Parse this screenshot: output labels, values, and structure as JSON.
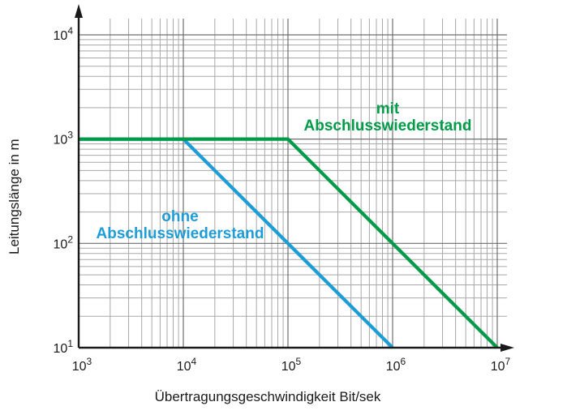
{
  "chart_data": {
    "type": "line",
    "title": "",
    "xlabel": "Übertragungsgeschwindigkeit Bit/sek",
    "ylabel": "Leitungslänge in m",
    "x_scale": "log",
    "y_scale": "log",
    "xlim": [
      1000,
      10000000
    ],
    "ylim": [
      10,
      10000
    ],
    "grid": "log major and minor gridlines on",
    "legend_position": "inline curve annotations",
    "x_ticks": [
      {
        "base": "10",
        "exp": "3"
      },
      {
        "base": "10",
        "exp": "4"
      },
      {
        "base": "10",
        "exp": "5"
      },
      {
        "base": "10",
        "exp": "6"
      },
      {
        "base": "10",
        "exp": "7"
      }
    ],
    "y_ticks": [
      {
        "base": "10",
        "exp": "4"
      },
      {
        "base": "10",
        "exp": "3"
      },
      {
        "base": "10",
        "exp": "2"
      },
      {
        "base": "10",
        "exp": "1"
      }
    ],
    "series": [
      {
        "name": "ohne Abschlusswiederstand",
        "label_lines": [
          "ohne",
          "Abschlusswiederstand"
        ],
        "color": "#1e9cd8",
        "points": [
          [
            1000,
            1000
          ],
          [
            10000,
            1000
          ],
          [
            1000000,
            10
          ]
        ]
      },
      {
        "name": "mit Abschlusswiederstand",
        "label_lines": [
          "mit",
          "Abschlusswiederstand"
        ],
        "color": "#009b48",
        "points": [
          [
            1000,
            1000
          ],
          [
            100000,
            1000
          ],
          [
            10000000,
            10
          ]
        ]
      }
    ],
    "colors": {
      "axis": "#1a1a1a",
      "grid_major": "#6f6f6f",
      "grid_minor": "#a8a8a8",
      "background": "#ffffff"
    }
  }
}
